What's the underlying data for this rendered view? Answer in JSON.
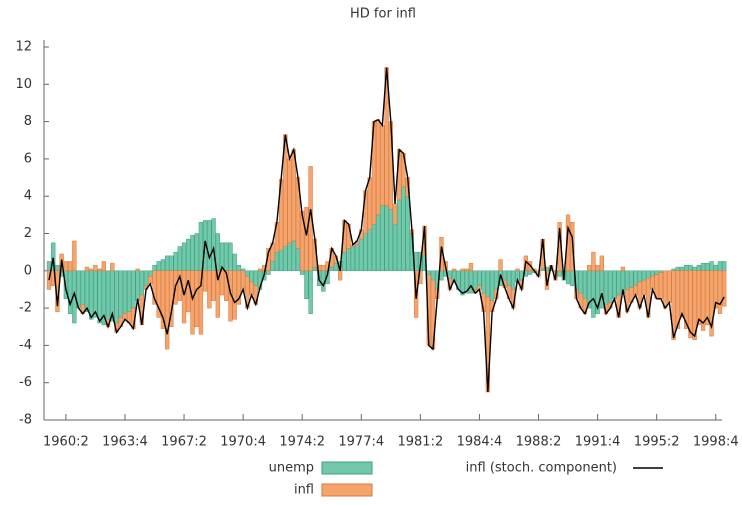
{
  "chart_data": {
    "type": "bar",
    "title": "HD for infl",
    "categories": [
      "1959:2",
      "1959:3",
      "1959:4",
      "1960:1",
      "1960:2",
      "1960:3",
      "1960:4",
      "1961:1",
      "1961:2",
      "1961:3",
      "1961:4",
      "1962:1",
      "1962:2",
      "1962:3",
      "1962:4",
      "1963:1",
      "1963:2",
      "1963:3",
      "1963:4",
      "1964:1",
      "1964:2",
      "1964:3",
      "1964:4",
      "1965:1",
      "1965:2",
      "1965:3",
      "1965:4",
      "1966:1",
      "1966:2",
      "1966:3",
      "1966:4",
      "1967:1",
      "1967:2",
      "1967:3",
      "1967:4",
      "1968:1",
      "1968:2",
      "1968:3",
      "1968:4",
      "1969:1",
      "1969:2",
      "1969:3",
      "1969:4",
      "1970:1",
      "1970:2",
      "1970:3",
      "1970:4",
      "1971:1",
      "1971:2",
      "1971:3",
      "1971:4",
      "1972:1",
      "1972:2",
      "1972:3",
      "1972:4",
      "1973:1",
      "1973:2",
      "1973:3",
      "1973:4",
      "1974:1",
      "1974:2",
      "1974:3",
      "1974:4",
      "1975:1",
      "1975:2",
      "1975:3",
      "1975:4",
      "1976:1",
      "1976:2",
      "1976:3",
      "1976:4",
      "1977:1",
      "1977:2",
      "1977:3",
      "1977:4",
      "1978:1",
      "1978:2",
      "1978:3",
      "1978:4",
      "1979:1",
      "1979:2",
      "1979:3",
      "1979:4",
      "1980:1",
      "1980:2",
      "1980:3",
      "1980:4",
      "1981:1",
      "1981:2",
      "1981:3",
      "1981:4",
      "1982:1",
      "1982:2",
      "1982:3",
      "1982:4",
      "1983:1",
      "1983:2",
      "1983:3",
      "1983:4",
      "1984:1",
      "1984:2",
      "1984:3",
      "1984:4",
      "1985:1",
      "1985:2",
      "1985:3",
      "1985:4",
      "1986:1",
      "1986:2",
      "1986:3",
      "1986:4",
      "1987:1",
      "1987:2",
      "1987:3",
      "1987:4",
      "1988:1",
      "1988:2",
      "1988:3",
      "1988:4",
      "1989:1",
      "1989:2",
      "1989:3",
      "1989:4",
      "1990:1",
      "1990:2",
      "1990:3",
      "1990:4",
      "1991:1",
      "1991:2",
      "1991:3",
      "1991:4",
      "1992:1",
      "1992:2",
      "1992:3",
      "1992:4",
      "1993:1",
      "1993:2",
      "1993:3",
      "1993:4",
      "1994:1",
      "1994:2",
      "1994:3",
      "1994:4",
      "1995:1",
      "1995:2",
      "1995:3",
      "1995:4",
      "1996:1",
      "1996:2",
      "1996:3",
      "1996:4",
      "1997:1",
      "1997:2",
      "1997:3",
      "1997:4",
      "1998:1",
      "1998:2",
      "1998:3",
      "1998:4",
      "1999:1",
      "1999:2"
    ],
    "xticks": [
      "1960:2",
      "1963:4",
      "1967:2",
      "1970:4",
      "1974:2",
      "1977:4",
      "1981:2",
      "1984:4",
      "1988:2",
      "1991:4",
      "1995:2",
      "1998:4"
    ],
    "ylim": [
      -8,
      12
    ],
    "yticks": [
      -8,
      -6,
      -4,
      -2,
      0,
      2,
      4,
      6,
      8,
      10,
      12
    ],
    "series": [
      {
        "name": "unemp",
        "type": "bar",
        "color": "#70c9ab",
        "values": [
          0.5,
          1.5,
          0.3,
          -0.3,
          -1.5,
          -2.3,
          -2.8,
          -2.0,
          -1.8,
          -2.2,
          -2.6,
          -2.5,
          -2.8,
          -2.9,
          -2.6,
          -2.7,
          -2.8,
          -2.5,
          -2.3,
          -2.2,
          -2.0,
          -1.6,
          -1.3,
          -0.8,
          -0.3,
          0.3,
          0.5,
          0.6,
          0.8,
          0.8,
          1.0,
          1.3,
          1.5,
          1.7,
          1.9,
          2.0,
          2.6,
          2.7,
          2.7,
          2.8,
          2.0,
          1.5,
          1.5,
          1.5,
          0.9,
          0.3,
          0.1,
          -0.3,
          -0.6,
          -0.8,
          -1.0,
          -0.5,
          -0.2,
          0.5,
          1.0,
          1.1,
          1.3,
          1.5,
          1.6,
          1.2,
          -0.2,
          -1.5,
          -2.3,
          0.2,
          -0.8,
          -1.1,
          -0.7,
          0.2,
          0.4,
          0.5,
          1.0,
          1.2,
          1.3,
          1.4,
          1.7,
          2.0,
          2.2,
          2.5,
          3.0,
          3.5,
          3.5,
          3.3,
          2.5,
          3.8,
          4.5,
          4.0,
          2.0,
          1.0,
          1.0,
          0.8,
          -0.2,
          -0.5,
          -1.0,
          -0.5,
          -0.3,
          -0.4,
          -0.6,
          -1.0,
          -1.3,
          -1.2,
          -1.2,
          -1.0,
          -0.8,
          -1.2,
          -1.4,
          -1.6,
          -1.0,
          -0.8,
          -0.5,
          -0.8,
          -1.0,
          -0.6,
          -0.5,
          -0.3,
          -0.2,
          -0.1,
          0,
          0.1,
          0.2,
          0.1,
          0.0,
          -0.3,
          -0.5,
          -0.7,
          -0.8,
          -1.0,
          -1.2,
          -1.5,
          -2.0,
          -2.5,
          -2.3,
          -2.0,
          -1.8,
          -1.7,
          -1.5,
          -1.3,
          -1.2,
          -1.0,
          -0.9,
          -0.8,
          -0.6,
          -0.5,
          -0.4,
          -0.3,
          -0.2,
          -0.1,
          0,
          0,
          0.1,
          0.2,
          0.2,
          0.3,
          0.3,
          0.2,
          0.3,
          0.4,
          0.4,
          0.5,
          0.3,
          0.5,
          0.5
        ]
      },
      {
        "name": "infl",
        "type": "bar",
        "color": "#f4a46c",
        "values": [
          -1.0,
          -0.8,
          -2.2,
          0.9,
          0.5,
          0.5,
          1.6,
          0,
          -0.5,
          0.2,
          0.1,
          0.3,
          0.1,
          0.5,
          -0.4,
          0.4,
          -0.5,
          -0.5,
          -0.3,
          -0.6,
          -1.1,
          0.1,
          -1.6,
          -0.2,
          -0.4,
          -1.8,
          -2.5,
          -3.1,
          -4.2,
          -3.0,
          -1.8,
          -1.6,
          -2.8,
          -2.2,
          -3.4,
          -3.0,
          -3.4,
          -1.1,
          -2.0,
          -1.6,
          -2.5,
          -1.3,
          -1.6,
          -2.7,
          -2.6,
          -1.8,
          -1.1,
          -1.7,
          -0.7,
          -1.0,
          0.1,
          0.3,
          1.2,
          1.0,
          1.6,
          3.8,
          6.0,
          4.5,
          4.9,
          3.8,
          3.2,
          3.4,
          5.6,
          1.5,
          0.3,
          0.3,
          0.5,
          1.0,
          0.4,
          -0.5,
          1.7,
          1.3,
          0.1,
          0.2,
          0.5,
          2.3,
          2.8,
          5.5,
          5.1,
          4.3,
          7.4,
          4.7,
          1.1,
          2.7,
          1.8,
          1.0,
          0.2,
          -2.5,
          -0.7,
          1.6,
          -3.8,
          -3.7,
          -0.5,
          1.8,
          0.5,
          -0.6,
          0.1,
          0,
          0.1,
          0.1,
          0.4,
          -0.2,
          -0.2,
          -1.0,
          -5.1,
          -0.6,
          -0.5,
          0.6,
          -0.4,
          -0.7,
          -1.0,
          0.1,
          -0.5,
          0.8,
          0.5,
          0.1,
          -0.3,
          1.6,
          -1.0,
          0.2,
          -0.5,
          2.6,
          0,
          3.0,
          2.6,
          -0.5,
          -0.8,
          -0.8,
          0.3,
          1.0,
          0.3,
          0.8,
          -0.5,
          -0.3,
          0,
          -1.2,
          0.2,
          -1.2,
          -0.8,
          -0.5,
          -1.4,
          -0.8,
          -2.1,
          -0.7,
          -1.3,
          -1.4,
          -2.0,
          -1.7,
          -3.7,
          -3.1,
          -2.5,
          -3.1,
          -3.6,
          -3.7,
          -2.9,
          -3.2,
          -2.9,
          -3.5,
          -2.0,
          -2.3,
          -1.9
        ]
      },
      {
        "name": "infl (stoch. component)",
        "type": "line",
        "color": "#000000",
        "values": [
          -0.5,
          0.7,
          -1.9,
          0.6,
          -1.0,
          -1.8,
          -1.2,
          -2.0,
          -2.3,
          -2.0,
          -2.5,
          -2.2,
          -2.7,
          -2.4,
          -3.0,
          -2.3,
          -3.3,
          -3.0,
          -2.6,
          -2.8,
          -3.1,
          -1.5,
          -2.9,
          -1.0,
          -0.7,
          -1.5,
          -2.0,
          -2.5,
          -3.4,
          -2.2,
          -0.8,
          -0.3,
          -1.3,
          -0.5,
          -1.5,
          -1.0,
          -0.8,
          1.6,
          0.7,
          1.2,
          -0.5,
          0.2,
          -0.1,
          -1.2,
          -1.7,
          -1.5,
          -1.0,
          -2.0,
          -1.3,
          -1.8,
          -0.9,
          -0.2,
          1.0,
          1.5,
          2.6,
          4.9,
          7.3,
          6.0,
          6.5,
          5.0,
          3.0,
          1.9,
          3.3,
          1.7,
          -0.5,
          -0.8,
          -0.2,
          1.2,
          0.8,
          0.0,
          2.7,
          2.5,
          1.4,
          1.6,
          2.2,
          4.3,
          5.0,
          8.0,
          8.1,
          7.8,
          10.9,
          8.0,
          3.6,
          6.5,
          6.3,
          5.0,
          2.2,
          -1.5,
          0.3,
          2.4,
          -4.0,
          -4.2,
          -1.5,
          1.3,
          0.2,
          -1.0,
          -0.5,
          -1.0,
          -1.2,
          -1.1,
          -0.8,
          -1.2,
          -1.0,
          -2.2,
          -6.5,
          -2.2,
          -1.5,
          -0.2,
          -0.9,
          -1.5,
          -2.0,
          -0.5,
          -1.0,
          0.5,
          0.3,
          0,
          -0.3,
          1.7,
          -0.8,
          0.3,
          -0.5,
          2.3,
          -0.5,
          2.3,
          1.8,
          -1.5,
          -2.0,
          -2.3,
          -1.7,
          -1.5,
          -2.0,
          -1.2,
          -2.3,
          -2.0,
          -1.5,
          -2.5,
          -1.0,
          -2.2,
          -1.7,
          -1.3,
          -2.0,
          -1.3,
          -2.5,
          -1.0,
          -1.5,
          -1.5,
          -2.0,
          -1.7,
          -3.6,
          -2.9,
          -2.3,
          -2.8,
          -3.3,
          -3.5,
          -2.6,
          -2.8,
          -2.5,
          -3.0,
          -1.7,
          -1.8,
          -1.4
        ]
      }
    ]
  }
}
